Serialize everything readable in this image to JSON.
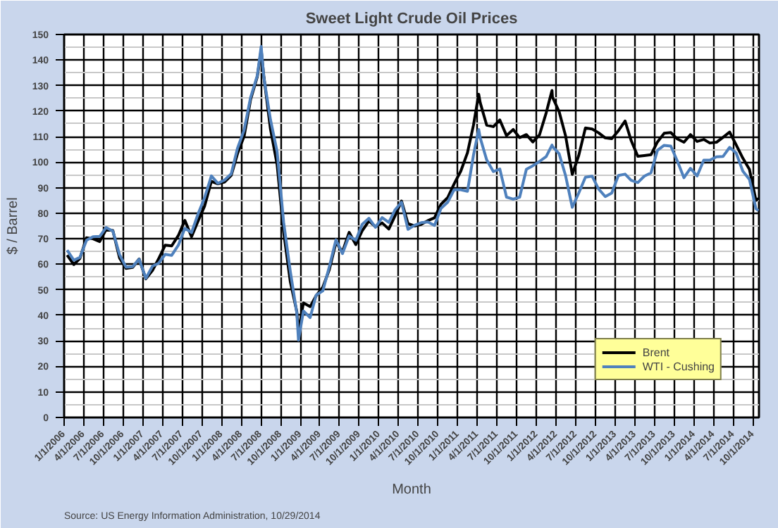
{
  "chart_data": {
    "type": "line",
    "title": "Sweet Light Crude Oil Prices",
    "xlabel": "Month",
    "ylabel": "$ / Barrel",
    "annotations": [
      "Source:  US Energy Information Administration, 10/29/2014"
    ],
    "x": [
      "2006-01-15",
      "2006-02-15",
      "2006-03-15",
      "2006-04-15",
      "2006-05-15",
      "2006-06-15",
      "2006-07-15",
      "2006-08-15",
      "2006-09-15",
      "2006-10-15",
      "2006-11-15",
      "2006-12-15",
      "2007-01-15",
      "2007-02-15",
      "2007-03-15",
      "2007-04-15",
      "2007-05-15",
      "2007-06-15",
      "2007-07-15",
      "2007-08-15",
      "2007-09-15",
      "2007-10-15",
      "2007-11-15",
      "2007-12-15",
      "2008-01-15",
      "2008-02-15",
      "2008-03-15",
      "2008-04-15",
      "2008-05-15",
      "2008-06-15",
      "2008-07-03",
      "2008-07-15",
      "2008-08-15",
      "2008-09-15",
      "2008-10-15",
      "2008-11-15",
      "2008-12-15",
      "2008-12-23",
      "2009-01-15",
      "2009-02-15",
      "2009-03-15",
      "2009-04-15",
      "2009-05-15",
      "2009-06-15",
      "2009-07-15",
      "2009-08-15",
      "2009-09-15",
      "2009-10-15",
      "2009-11-15",
      "2009-12-15",
      "2010-01-15",
      "2010-02-15",
      "2010-03-15",
      "2010-04-15",
      "2010-05-15",
      "2010-06-15",
      "2010-07-15",
      "2010-08-15",
      "2010-09-15",
      "2010-10-15",
      "2010-11-15",
      "2010-12-15",
      "2011-01-15",
      "2011-02-15",
      "2011-03-15",
      "2011-04-08",
      "2011-04-15",
      "2011-05-15",
      "2011-06-15",
      "2011-07-15",
      "2011-08-15",
      "2011-09-15",
      "2011-10-15",
      "2011-11-15",
      "2011-12-15",
      "2012-01-15",
      "2012-02-15",
      "2012-03-13",
      "2012-03-15",
      "2012-04-15",
      "2012-05-15",
      "2012-06-15",
      "2012-07-15",
      "2012-08-15",
      "2012-09-15",
      "2012-10-15",
      "2012-11-15",
      "2012-12-15",
      "2013-01-15",
      "2013-02-15",
      "2013-03-15",
      "2013-04-15",
      "2013-05-15",
      "2013-06-15",
      "2013-07-15",
      "2013-08-15",
      "2013-09-15",
      "2013-10-15",
      "2013-11-15",
      "2013-12-15",
      "2014-01-15",
      "2014-02-15",
      "2014-03-15",
      "2014-04-15",
      "2014-05-15",
      "2014-06-15",
      "2014-07-15",
      "2014-08-15",
      "2014-09-15",
      "2014-10-15",
      "2014-10-27"
    ],
    "series": [
      {
        "name": "Brent",
        "color": "#000000",
        "values": [
          63.6,
          59.9,
          62.3,
          70.4,
          70.0,
          68.9,
          73.7,
          73.2,
          62.5,
          58.4,
          58.8,
          62.1,
          54.3,
          57.6,
          62.1,
          67.5,
          67.2,
          71.3,
          77.2,
          70.8,
          77.1,
          82.9,
          92.5,
          91.5,
          92.2,
          94.8,
          103.3,
          110.2,
          124.6,
          133.5,
          144.0,
          133.9,
          113.0,
          99.0,
          72.8,
          53.2,
          41.6,
          33.7,
          44.9,
          43.4,
          47.7,
          51.0,
          57.9,
          68.6,
          64.9,
          72.5,
          67.7,
          73.2,
          77.0,
          74.7,
          76.2,
          73.8,
          78.8,
          84.8,
          75.9,
          75.0,
          75.6,
          77.1,
          78.2,
          83.5,
          86.1,
          91.5,
          96.5,
          103.7,
          114.6,
          126.6,
          123.3,
          114.5,
          113.9,
          116.5,
          110.4,
          112.8,
          109.6,
          110.8,
          107.9,
          110.7,
          119.3,
          128.1,
          125.5,
          119.8,
          110.3,
          95.2,
          102.6,
          113.4,
          113.0,
          111.5,
          109.5,
          109.2,
          112.3,
          116.1,
          108.5,
          102.3,
          102.6,
          102.9,
          107.9,
          111.3,
          111.6,
          109.1,
          107.8,
          110.8,
          108.1,
          108.9,
          107.5,
          107.8,
          109.7,
          111.8,
          106.8,
          101.6,
          97.1,
          85.0,
          85.8
        ]
      },
      {
        "name": "WTI - Cushing",
        "color": "#4f81bd",
        "values": [
          65.5,
          61.6,
          62.7,
          69.4,
          70.8,
          70.9,
          74.4,
          73.0,
          63.8,
          58.9,
          59.1,
          62.0,
          54.5,
          59.3,
          60.4,
          63.9,
          63.5,
          67.5,
          74.1,
          72.4,
          79.9,
          86.2,
          94.6,
          91.7,
          93.0,
          95.4,
          105.4,
          112.6,
          125.4,
          133.9,
          145.3,
          133.4,
          116.7,
          104.1,
          76.6,
          57.3,
          41.1,
          30.3,
          41.7,
          39.1,
          47.9,
          49.6,
          59.0,
          69.6,
          64.2,
          71.1,
          69.4,
          75.7,
          78.0,
          74.5,
          78.3,
          76.4,
          81.2,
          84.3,
          73.7,
          75.3,
          76.3,
          76.6,
          75.2,
          81.9,
          84.3,
          89.2,
          89.2,
          88.6,
          102.9,
          112.8,
          109.5,
          100.9,
          96.3,
          97.3,
          86.3,
          85.5,
          86.3,
          97.2,
          98.6,
          100.3,
          102.2,
          106.7,
          106.2,
          103.3,
          94.7,
          82.3,
          87.9,
          94.1,
          94.5,
          89.5,
          86.5,
          87.9,
          94.8,
          95.3,
          92.9,
          92.0,
          94.5,
          95.8,
          104.6,
          106.6,
          106.3,
          100.5,
          93.9,
          97.6,
          94.6,
          100.8,
          100.8,
          102.1,
          102.2,
          105.8,
          103.6,
          96.5,
          93.2,
          81.8,
          81.0
        ]
      }
    ],
    "xlim": [
      "2006-01-01",
      "2014-10-29"
    ],
    "xticks": [
      {
        "value": "2006-01-01",
        "label": "1/1/2006"
      },
      {
        "value": "2006-04-01",
        "label": "4/1/2006"
      },
      {
        "value": "2006-07-01",
        "label": "7/1/2006"
      },
      {
        "value": "2006-10-01",
        "label": "10/1/2006"
      },
      {
        "value": "2007-01-01",
        "label": "1/1/2007"
      },
      {
        "value": "2007-04-01",
        "label": "4/1/2007"
      },
      {
        "value": "2007-07-01",
        "label": "7/1/2007"
      },
      {
        "value": "2007-10-01",
        "label": "10/1/2007"
      },
      {
        "value": "2008-01-01",
        "label": "1/1/2008"
      },
      {
        "value": "2008-04-01",
        "label": "4/1/2008"
      },
      {
        "value": "2008-07-01",
        "label": "7/1/2008"
      },
      {
        "value": "2008-10-01",
        "label": "10/1/2008"
      },
      {
        "value": "2009-01-01",
        "label": "1/1/2009"
      },
      {
        "value": "2009-04-01",
        "label": "4/1/2009"
      },
      {
        "value": "2009-07-01",
        "label": "7/1/2009"
      },
      {
        "value": "2009-10-01",
        "label": "10/1/2009"
      },
      {
        "value": "2010-01-01",
        "label": "1/1/2010"
      },
      {
        "value": "2010-04-01",
        "label": "4/1/2010"
      },
      {
        "value": "2010-07-01",
        "label": "7/1/2010"
      },
      {
        "value": "2010-10-01",
        "label": "10/1/2010"
      },
      {
        "value": "2011-01-01",
        "label": "1/1/2011"
      },
      {
        "value": "2011-04-01",
        "label": "4/1/2011"
      },
      {
        "value": "2011-07-01",
        "label": "7/1/2011"
      },
      {
        "value": "2011-10-01",
        "label": "10/1/2011"
      },
      {
        "value": "2012-01-01",
        "label": "1/1/2012"
      },
      {
        "value": "2012-04-01",
        "label": "4/1/2012"
      },
      {
        "value": "2012-07-01",
        "label": "7/1/2012"
      },
      {
        "value": "2012-10-01",
        "label": "10/1/2012"
      },
      {
        "value": "2013-01-01",
        "label": "1/1/2013"
      },
      {
        "value": "2013-04-01",
        "label": "4/1/2013"
      },
      {
        "value": "2013-07-01",
        "label": "7/1/2013"
      },
      {
        "value": "2013-10-01",
        "label": "10/1/2013"
      },
      {
        "value": "2014-01-01",
        "label": "1/1/2014"
      },
      {
        "value": "2014-04-01",
        "label": "4/1/2014"
      },
      {
        "value": "2014-07-01",
        "label": "7/1/2014"
      },
      {
        "value": "2014-10-01",
        "label": "10/1/2014"
      }
    ],
    "ylim": [
      0,
      150
    ],
    "yticks": [
      0,
      10,
      20,
      30,
      40,
      50,
      60,
      70,
      80,
      90,
      100,
      110,
      120,
      130,
      140,
      150
    ],
    "grid": true,
    "legend": "bottom right",
    "marker": "none",
    "line_style": "solid"
  }
}
